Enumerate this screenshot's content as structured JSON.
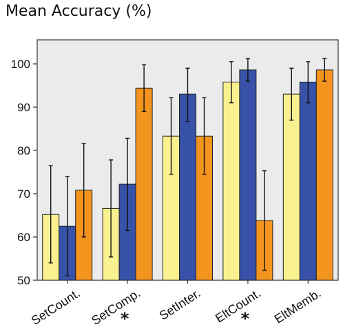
{
  "chart_data": {
    "type": "bar",
    "title": "Mean Accuracy (%)",
    "xlabel": "",
    "ylabel": "",
    "ylim": [
      50,
      103
    ],
    "yticks": [
      50,
      60,
      70,
      80,
      90,
      100
    ],
    "categories": [
      "SetCount.",
      "SetComp.",
      "SetInter.",
      "EltCount.",
      "EltMemb."
    ],
    "category_marks": [
      "",
      "*",
      "",
      "*",
      ""
    ],
    "series": [
      {
        "color": "#f9f190",
        "values": [
          65.2,
          66.6,
          83.3,
          95.8,
          93.0
        ],
        "error_low": [
          54.0,
          55.4,
          74.5,
          91.0,
          87.0
        ],
        "error_high": [
          76.5,
          77.8,
          92.2,
          100.5,
          99.0
        ]
      },
      {
        "color": "#3752a8",
        "values": [
          62.5,
          72.2,
          93.0,
          98.6,
          95.8
        ],
        "error_low": [
          51.0,
          61.5,
          86.7,
          96.0,
          91.0
        ],
        "error_high": [
          74.0,
          82.8,
          99.0,
          101.2,
          100.5
        ]
      },
      {
        "color": "#f3941e",
        "values": [
          70.8,
          94.4,
          83.3,
          63.8,
          98.6
        ],
        "error_low": [
          60.0,
          89.0,
          74.5,
          52.3,
          96.0
        ],
        "error_high": [
          81.6,
          99.8,
          92.2,
          75.3,
          101.2
        ]
      }
    ],
    "grid": false,
    "legend": "none",
    "plot_background": "#ebebeb"
  }
}
